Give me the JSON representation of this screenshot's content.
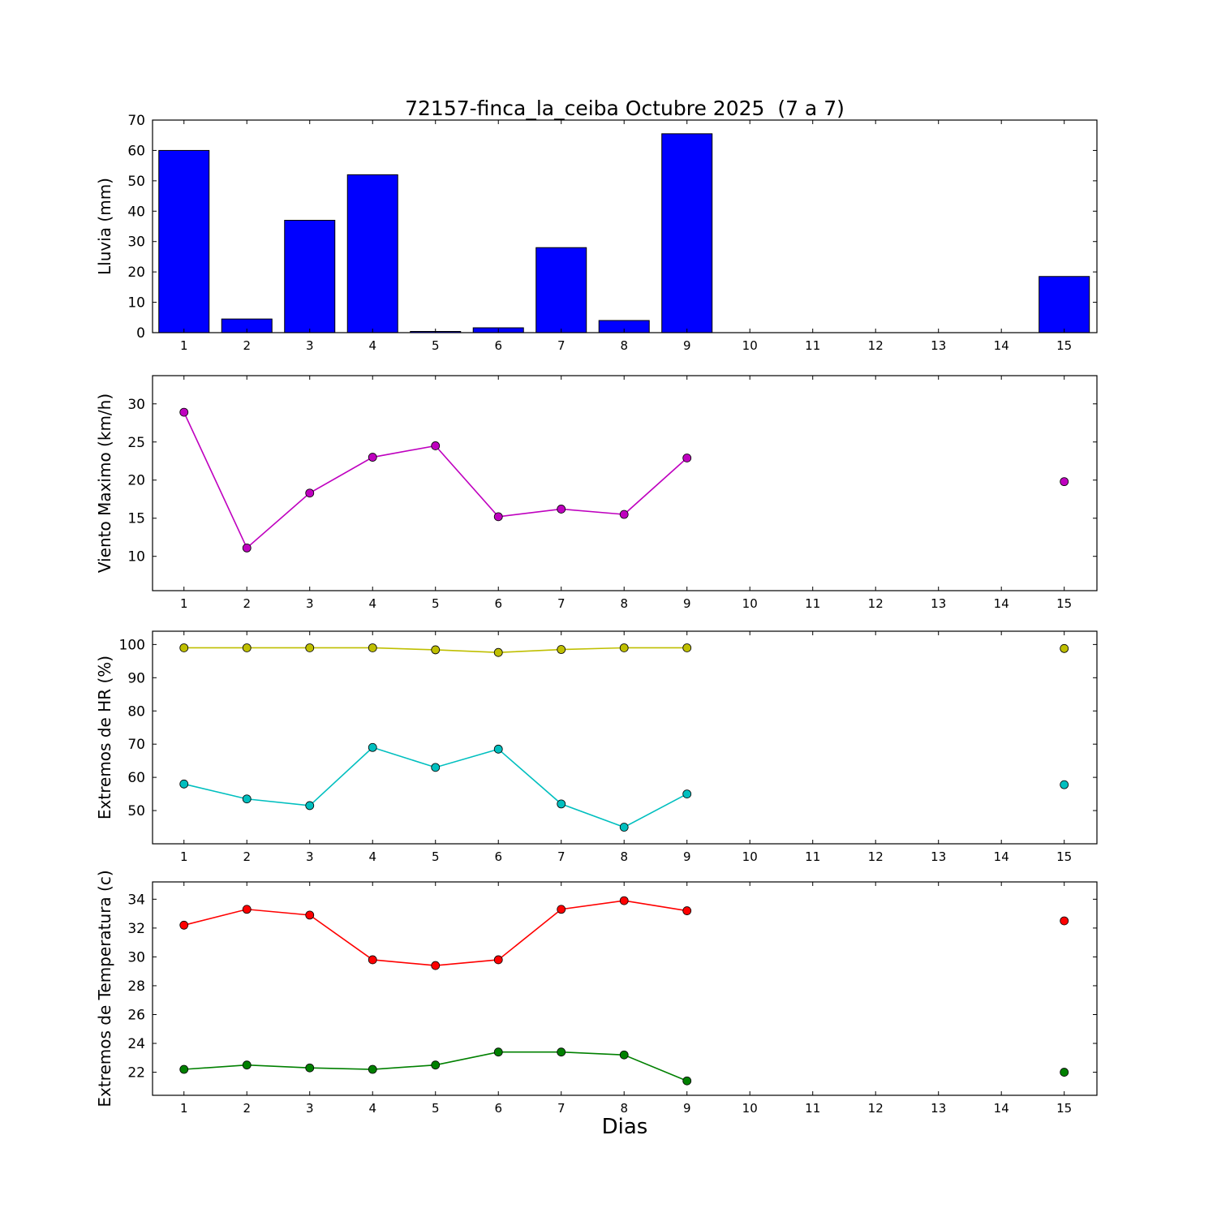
{
  "figure": {
    "title": "72157-finca_la_ceiba Octubre 2025  (7 a 7)",
    "xlabel": "Dias"
  },
  "chart_data": [
    {
      "type": "bar",
      "name": "lluvia",
      "ylabel": "Lluvia (mm)",
      "bar_color": "#0000ff",
      "bar_width": 0.8,
      "x": [
        1,
        2,
        3,
        4,
        5,
        6,
        7,
        8,
        9,
        15
      ],
      "values": [
        60,
        4.5,
        37,
        52,
        0.4,
        1.6,
        28,
        4,
        65.5,
        18.5
      ],
      "xlim": [
        0.5,
        15.52
      ],
      "ylim": [
        0,
        70
      ],
      "yticks": [
        0,
        10,
        20,
        30,
        40,
        50,
        60,
        70
      ],
      "xticks": [
        1,
        2,
        3,
        4,
        5,
        6,
        7,
        8,
        9,
        10,
        11,
        12,
        13,
        14,
        15
      ],
      "grid": false
    },
    {
      "type": "line",
      "name": "viento",
      "ylabel": "Viento Maximo (km/h)",
      "xlim": [
        0.5,
        15.52
      ],
      "ylim": [
        5.5,
        33.7
      ],
      "yticks": [
        10,
        15,
        20,
        25,
        30
      ],
      "xticks": [
        1,
        2,
        3,
        4,
        5,
        6,
        7,
        8,
        9,
        10,
        11,
        12,
        13,
        14,
        15
      ],
      "grid": false,
      "series": [
        {
          "name": "viento-maximo",
          "color": "#bf00bf",
          "x": [
            1,
            2,
            3,
            4,
            5,
            6,
            7,
            8,
            9,
            15
          ],
          "values": [
            28.9,
            11.1,
            18.3,
            23.0,
            24.5,
            15.2,
            16.2,
            15.5,
            22.9,
            19.8
          ]
        }
      ]
    },
    {
      "type": "line",
      "name": "hr",
      "ylabel": "Extremos de HR (%)",
      "xlim": [
        0.5,
        15.52
      ],
      "ylim": [
        40,
        104
      ],
      "yticks": [
        50,
        60,
        70,
        80,
        90,
        100
      ],
      "xticks": [
        1,
        2,
        3,
        4,
        5,
        6,
        7,
        8,
        9,
        10,
        11,
        12,
        13,
        14,
        15
      ],
      "grid": false,
      "series": [
        {
          "name": "hr-maxima",
          "color": "#bfbf00",
          "x": [
            1,
            2,
            3,
            4,
            5,
            6,
            7,
            8,
            9,
            15
          ],
          "values": [
            99,
            99,
            99,
            99,
            98.4,
            97.6,
            98.5,
            99,
            99,
            98.8
          ]
        },
        {
          "name": "hr-minima",
          "color": "#00bfbf",
          "x": [
            1,
            2,
            3,
            4,
            5,
            6,
            7,
            8,
            9,
            15
          ],
          "values": [
            58,
            53.5,
            51.5,
            69,
            63,
            68.5,
            52,
            45,
            55,
            57.8
          ]
        }
      ]
    },
    {
      "type": "line",
      "name": "temperatura",
      "ylabel": "Extremos de Temperatura (c)",
      "xlim": [
        0.5,
        15.52
      ],
      "ylim": [
        20.4,
        35.2
      ],
      "yticks": [
        22,
        24,
        26,
        28,
        30,
        32,
        34
      ],
      "xticks": [
        1,
        2,
        3,
        4,
        5,
        6,
        7,
        8,
        9,
        10,
        11,
        12,
        13,
        14,
        15
      ],
      "grid": false,
      "series": [
        {
          "name": "temperatura-maxima",
          "color": "#ff0000",
          "x": [
            1,
            2,
            3,
            4,
            5,
            6,
            7,
            8,
            9,
            15
          ],
          "values": [
            32.2,
            33.3,
            32.9,
            29.8,
            29.4,
            29.8,
            33.3,
            33.9,
            33.2,
            32.5
          ]
        },
        {
          "name": "temperatura-minima",
          "color": "#008000",
          "x": [
            1,
            2,
            3,
            4,
            5,
            6,
            7,
            8,
            9,
            15
          ],
          "values": [
            22.2,
            22.5,
            22.3,
            22.2,
            22.5,
            23.4,
            23.4,
            23.2,
            21.4,
            22.0
          ]
        }
      ]
    }
  ]
}
